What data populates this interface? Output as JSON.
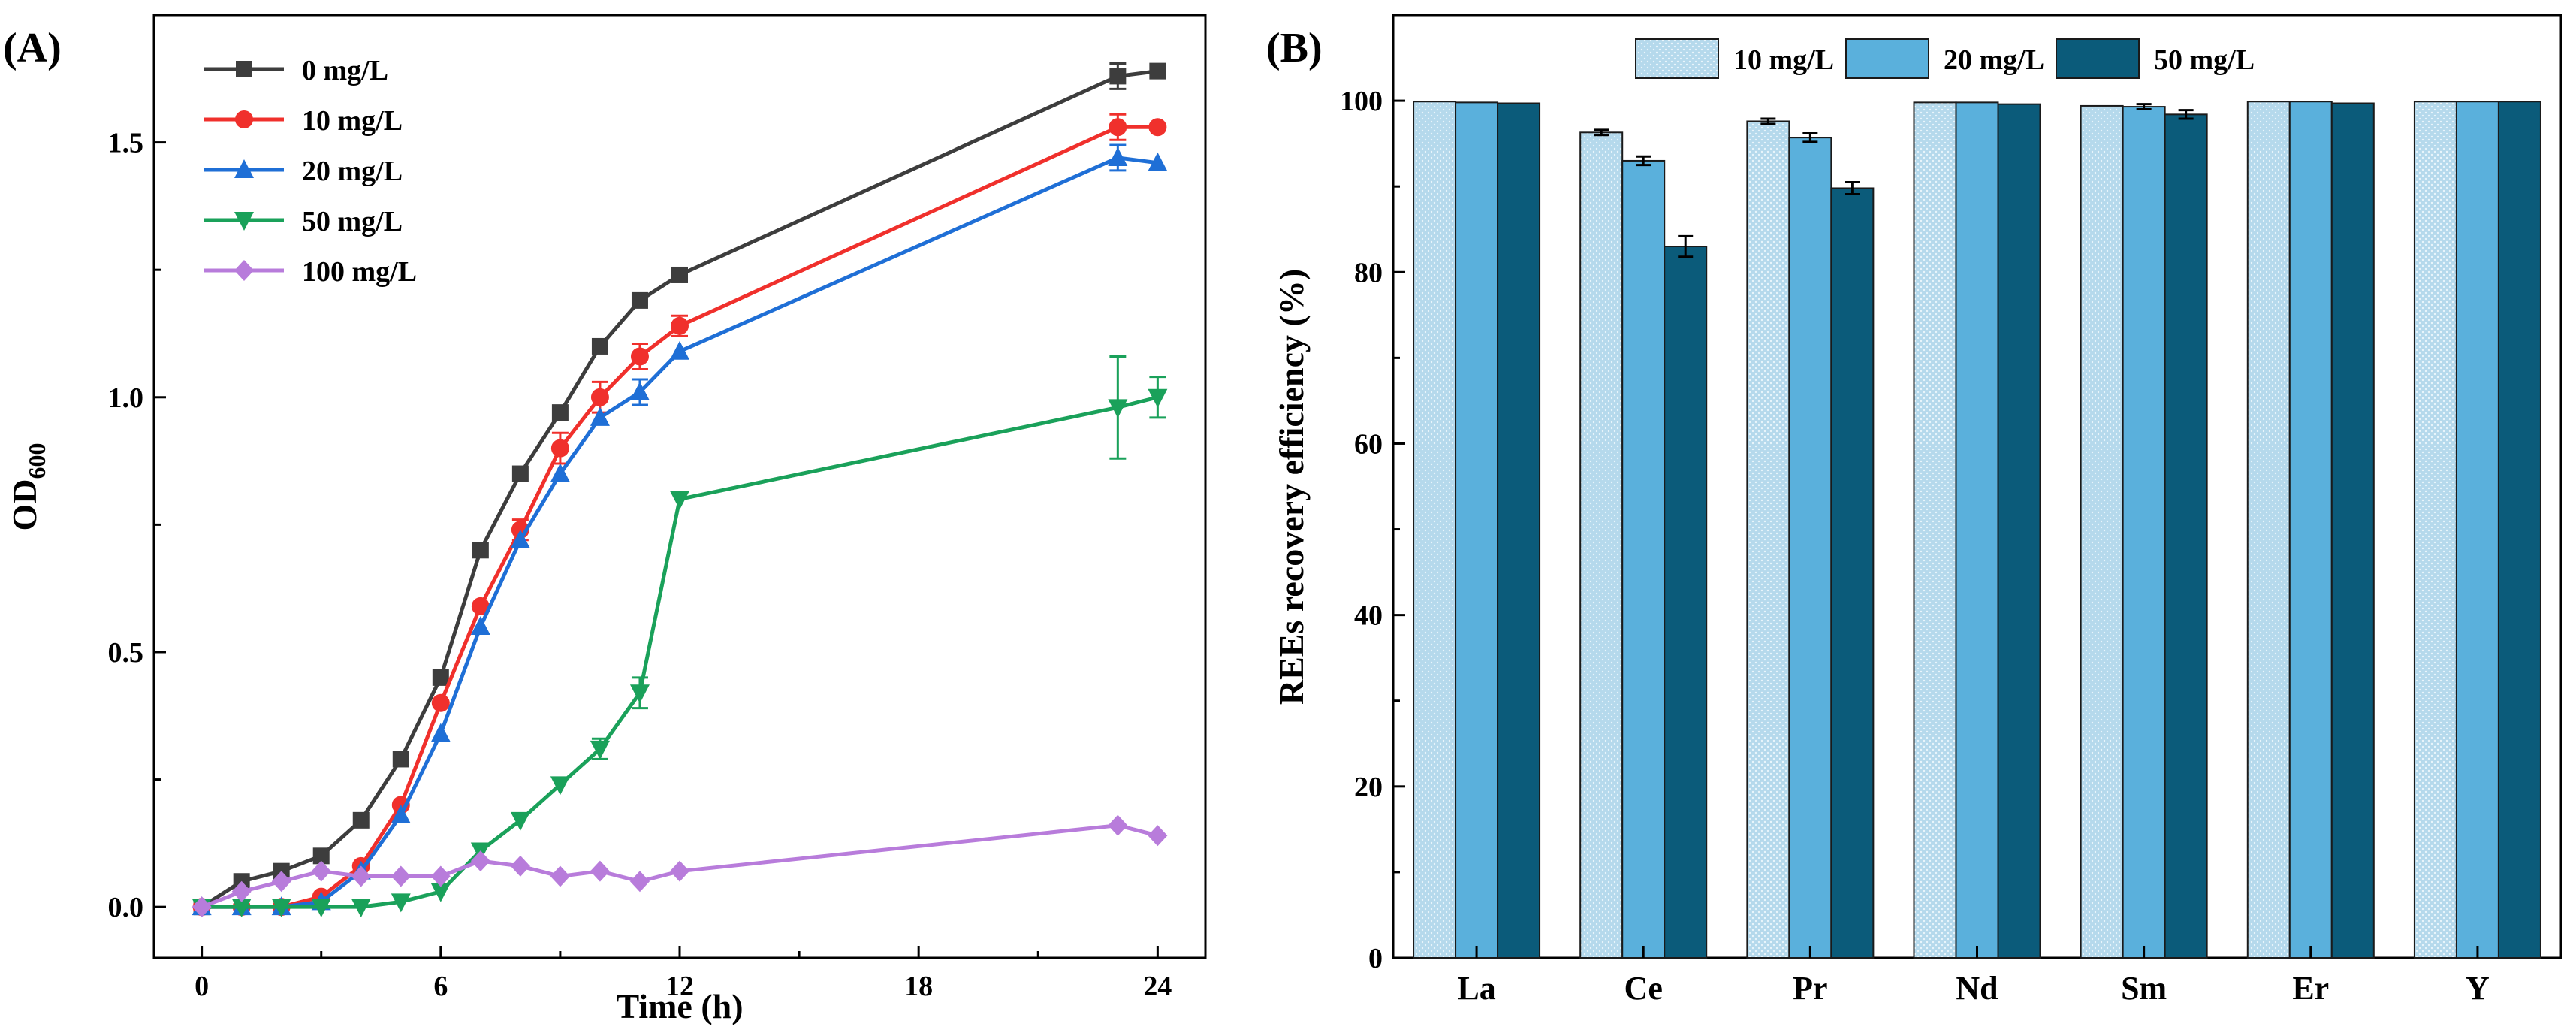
{
  "figure": {
    "panel_a_label": "(A)",
    "panel_b_label": "(B)"
  },
  "chart_data": [
    {
      "type": "line",
      "panel": "(A)",
      "title": "",
      "xlabel": "Time (h)",
      "ylabel_main": "OD",
      "ylabel_sub": "600",
      "xlim": [
        -1.2,
        25.2
      ],
      "ylim": [
        -0.1,
        1.75
      ],
      "xticks": [
        0,
        6,
        12,
        18,
        24
      ],
      "xtick_labels": [
        "0",
        "6",
        "12",
        "18",
        "24"
      ],
      "yticks": [
        0.0,
        0.5,
        1.0,
        1.5
      ],
      "ytick_labels": [
        "0.0",
        "0.5",
        "1.0",
        "1.5"
      ],
      "legend_position": "top-left",
      "series": [
        {
          "name": "0 mg/L",
          "color": "#3d3d3d",
          "marker": "square",
          "x": [
            0,
            1,
            2,
            3,
            4,
            5,
            6,
            7,
            8,
            9,
            10,
            11,
            12,
            23,
            24
          ],
          "y": [
            0.0,
            0.05,
            0.07,
            0.1,
            0.17,
            0.29,
            0.45,
            0.7,
            0.85,
            0.97,
            1.1,
            1.19,
            1.24,
            1.63,
            1.64
          ],
          "err": [
            0,
            0,
            0,
            0,
            0,
            0,
            0,
            0,
            0,
            0,
            0,
            0,
            0,
            0.025,
            0
          ]
        },
        {
          "name": "10 mg/L",
          "color": "#f0302c",
          "marker": "circle",
          "x": [
            0,
            1,
            2,
            3,
            4,
            5,
            6,
            7,
            8,
            9,
            10,
            11,
            12,
            23,
            24
          ],
          "y": [
            0.0,
            0.0,
            0.0,
            0.02,
            0.08,
            0.2,
            0.4,
            0.59,
            0.74,
            0.9,
            1.0,
            1.08,
            1.14,
            1.53,
            1.53
          ],
          "err": [
            0,
            0,
            0,
            0,
            0,
            0,
            0,
            0,
            0.02,
            0.03,
            0.03,
            0.025,
            0.02,
            0.025,
            0
          ]
        },
        {
          "name": "20 mg/L",
          "color": "#1f6fd6",
          "marker": "triangle-up",
          "x": [
            0,
            1,
            2,
            3,
            4,
            5,
            6,
            7,
            8,
            9,
            10,
            11,
            12,
            23,
            24
          ],
          "y": [
            0.0,
            0.0,
            0.0,
            0.01,
            0.07,
            0.18,
            0.34,
            0.55,
            0.72,
            0.85,
            0.96,
            1.01,
            1.09,
            1.47,
            1.46
          ],
          "err": [
            0,
            0,
            0,
            0,
            0,
            0,
            0,
            0,
            0,
            0,
            0,
            0.025,
            0,
            0.025,
            0
          ]
        },
        {
          "name": "50 mg/L",
          "color": "#1aa15a",
          "marker": "triangle-down",
          "x": [
            0,
            1,
            2,
            3,
            4,
            5,
            6,
            7,
            8,
            9,
            10,
            11,
            12,
            23,
            24
          ],
          "y": [
            0.0,
            0.0,
            0.0,
            0.0,
            0.0,
            0.01,
            0.03,
            0.11,
            0.17,
            0.24,
            0.31,
            0.42,
            0.8,
            0.98,
            1.0
          ],
          "err": [
            0,
            0,
            0,
            0,
            0,
            0,
            0,
            0,
            0,
            0,
            0.02,
            0.03,
            0,
            0.1,
            0.04
          ]
        },
        {
          "name": "100 mg/L",
          "color": "#b87cdb",
          "marker": "diamond",
          "x": [
            0,
            1,
            2,
            3,
            4,
            5,
            6,
            7,
            8,
            9,
            10,
            11,
            12,
            23,
            24
          ],
          "y": [
            0.0,
            0.03,
            0.05,
            0.07,
            0.06,
            0.06,
            0.06,
            0.09,
            0.08,
            0.06,
            0.07,
            0.05,
            0.07,
            0.16,
            0.14
          ],
          "err": [
            0,
            0,
            0,
            0,
            0,
            0,
            0,
            0,
            0,
            0,
            0,
            0,
            0,
            0,
            0
          ]
        }
      ]
    },
    {
      "type": "bar",
      "panel": "(B)",
      "title": "",
      "xlabel": "",
      "ylabel": "REEs recovery efficiency (%)",
      "ylim": [
        0,
        110
      ],
      "yticks": [
        0,
        20,
        40,
        60,
        80,
        100
      ],
      "ytick_labels": [
        "0",
        "20",
        "40",
        "60",
        "80",
        "100"
      ],
      "legend_position": "top",
      "categories": [
        "La",
        "Ce",
        "Pr",
        "Nd",
        "Sm",
        "Er",
        "Y"
      ],
      "series": [
        {
          "name": "10 mg/L",
          "color": "#b5d9ec",
          "pattern": "dotted",
          "values": [
            99.9,
            96.3,
            97.6,
            99.8,
            99.4,
            99.9,
            99.9
          ],
          "err": [
            0.1,
            0.3,
            0.3,
            0.1,
            0.2,
            0.1,
            0.1
          ]
        },
        {
          "name": "20 mg/L",
          "color": "#5ab0dc",
          "pattern": "solid",
          "values": [
            99.8,
            93.0,
            95.7,
            99.8,
            99.3,
            99.9,
            99.9
          ],
          "err": [
            0.1,
            0.5,
            0.5,
            0.1,
            0.3,
            0.1,
            0.1
          ]
        },
        {
          "name": "50 mg/L",
          "color": "#0b5b7a",
          "pattern": "solid",
          "values": [
            99.7,
            83.0,
            89.8,
            99.6,
            98.4,
            99.7,
            99.9
          ],
          "err": [
            0.1,
            1.2,
            0.7,
            0.1,
            0.5,
            0.1,
            0.1
          ]
        }
      ]
    }
  ]
}
